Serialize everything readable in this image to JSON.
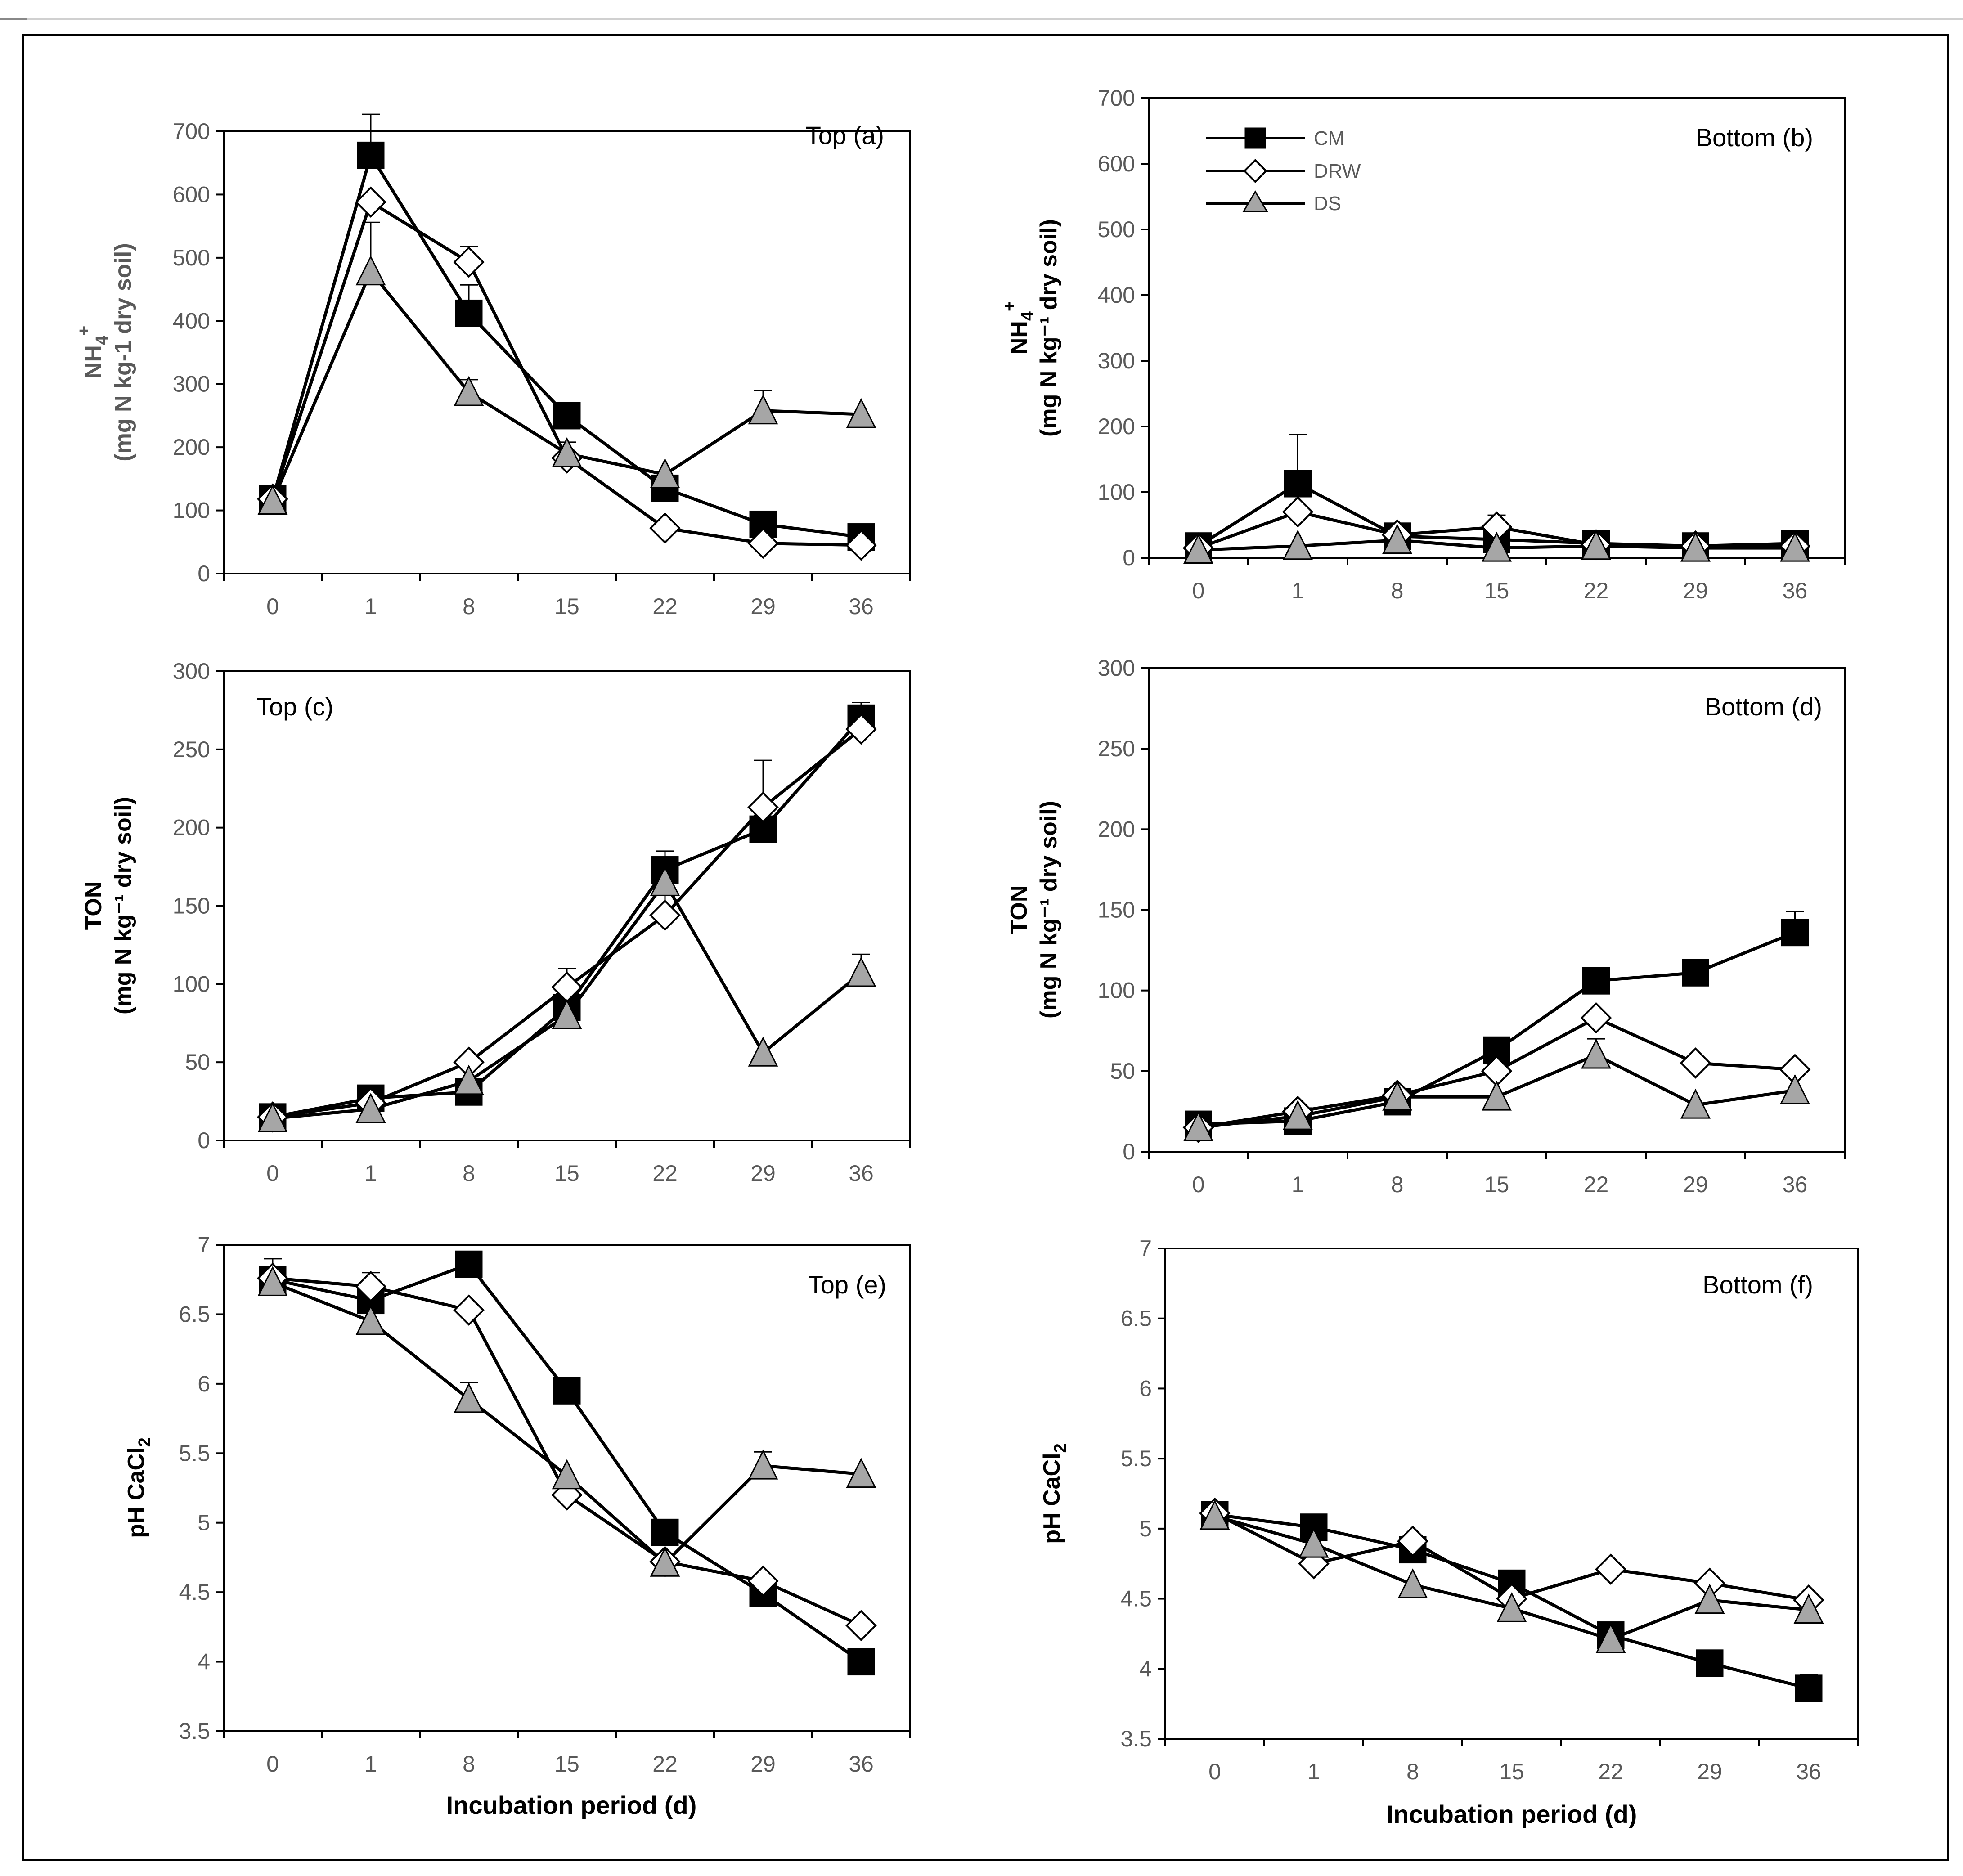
{
  "figure": {
    "xlabel": "Incubation period (d)",
    "colors": {
      "cm": "#000000",
      "drw": "#ffffff",
      "ds": "#a6a6a6",
      "line": "#000000",
      "axis": "#000000",
      "text_grey": "#595959"
    }
  },
  "legend": {
    "cm": "CM",
    "drw": "DRW",
    "ds": "DS"
  },
  "chart_data": [
    {
      "id": "a",
      "type": "line",
      "title": "Top (a)",
      "ylabel_main": "NH",
      "ylabel_sub": "4",
      "ylabel_sup": "+",
      "ylabel_line2": "(mg N kg-1 dry soil)",
      "ylim": [
        0,
        700
      ],
      "yticks": [
        0,
        100,
        200,
        300,
        400,
        500,
        600,
        700
      ],
      "categories": [
        "0",
        "1",
        "8",
        "15",
        "22",
        "29",
        "36"
      ],
      "series": [
        {
          "name": "CM",
          "values": [
            118,
            662,
            412,
            250,
            135,
            78,
            58
          ],
          "errors": [
            0,
            65,
            45,
            0,
            0,
            0,
            0
          ]
        },
        {
          "name": "DRW",
          "values": [
            118,
            588,
            493,
            183,
            72,
            48,
            45
          ],
          "errors": [
            0,
            0,
            25,
            0,
            0,
            0,
            0
          ]
        },
        {
          "name": "DS",
          "values": [
            115,
            478,
            287,
            190,
            157,
            258,
            252
          ],
          "errors": [
            0,
            78,
            20,
            18,
            0,
            32,
            0
          ]
        }
      ]
    },
    {
      "id": "b",
      "type": "line",
      "title": "Bottom (b)",
      "ylabel_main": "NH",
      "ylabel_sub": "4",
      "ylabel_sup": "+",
      "ylabel_line2": "(mg N kg⁻¹ dry soil)",
      "ylim": [
        0,
        700
      ],
      "yticks": [
        0,
        100,
        200,
        300,
        400,
        500,
        600,
        700
      ],
      "categories": [
        "0",
        "1",
        "8",
        "15",
        "22",
        "29",
        "36"
      ],
      "series": [
        {
          "name": "CM",
          "values": [
            18,
            113,
            33,
            28,
            22,
            18,
            22
          ],
          "errors": [
            0,
            75,
            0,
            0,
            0,
            0,
            0
          ]
        },
        {
          "name": "DRW",
          "values": [
            15,
            70,
            35,
            47,
            20,
            18,
            18
          ],
          "errors": [
            0,
            0,
            0,
            18,
            0,
            0,
            0
          ]
        },
        {
          "name": "DS",
          "values": [
            12,
            18,
            27,
            15,
            18,
            15,
            15
          ],
          "errors": [
            0,
            0,
            0,
            0,
            0,
            0,
            0
          ]
        }
      ]
    },
    {
      "id": "c",
      "type": "line",
      "title": "Top (c)",
      "ylabel_main": "TON",
      "ylabel_line2": "(mg N kg⁻¹ dry soil)",
      "ylim": [
        0,
        300
      ],
      "yticks": [
        0,
        50,
        100,
        150,
        200,
        250,
        300
      ],
      "categories": [
        "0",
        "1",
        "8",
        "15",
        "22",
        "29",
        "36"
      ],
      "series": [
        {
          "name": "CM",
          "values": [
            15,
            27,
            31,
            85,
            173,
            199,
            270
          ],
          "errors": [
            0,
            0,
            0,
            0,
            12,
            16,
            10
          ]
        },
        {
          "name": "DRW",
          "values": [
            15,
            24,
            50,
            98,
            144,
            213,
            263
          ],
          "errors": [
            0,
            0,
            0,
            12,
            35,
            30,
            12
          ]
        },
        {
          "name": "DS",
          "values": [
            14,
            20,
            38,
            80,
            165,
            56,
            107
          ],
          "errors": [
            0,
            0,
            0,
            0,
            0,
            0,
            12
          ]
        }
      ]
    },
    {
      "id": "d",
      "type": "line",
      "title": "Bottom (d)",
      "ylabel_main": "TON",
      "ylabel_line2": "(mg N kg⁻¹ dry soil)",
      "ylim": [
        0,
        300
      ],
      "yticks": [
        0,
        50,
        100,
        150,
        200,
        250,
        300
      ],
      "categories": [
        "0",
        "1",
        "8",
        "15",
        "22",
        "29",
        "36"
      ],
      "series": [
        {
          "name": "CM",
          "values": [
            17,
            19,
            31,
            63,
            106,
            111,
            136
          ],
          "errors": [
            0,
            0,
            0,
            0,
            0,
            0,
            13
          ]
        },
        {
          "name": "DRW",
          "values": [
            15,
            25,
            35,
            50,
            83,
            55,
            51
          ],
          "errors": [
            0,
            0,
            0,
            0,
            0,
            0,
            0
          ]
        },
        {
          "name": "DS",
          "values": [
            15,
            22,
            34,
            34,
            60,
            29,
            38
          ],
          "errors": [
            0,
            0,
            0,
            0,
            10,
            0,
            0
          ]
        }
      ]
    },
    {
      "id": "e",
      "type": "line",
      "title": "Top (e)",
      "ylabel_main": "pH CaCl",
      "ylabel_sub": "2",
      "ylim": [
        3.5,
        7
      ],
      "yticks": [
        3.5,
        4,
        4.5,
        5,
        5.5,
        6,
        6.5,
        7
      ],
      "categories": [
        "0",
        "1",
        "8",
        "15",
        "22",
        "29",
        "36"
      ],
      "series": [
        {
          "name": "CM",
          "values": [
            6.75,
            6.6,
            6.86,
            5.95,
            4.93,
            4.49,
            4.0
          ],
          "errors": [
            0.15,
            0,
            0,
            0,
            0,
            0,
            0
          ]
        },
        {
          "name": "DRW",
          "values": [
            6.76,
            6.7,
            6.53,
            5.2,
            4.72,
            4.58,
            4.26
          ],
          "errors": [
            0,
            0.1,
            0,
            0,
            0,
            0,
            0
          ]
        },
        {
          "name": "DS",
          "values": [
            6.73,
            6.45,
            5.89,
            5.34,
            4.71,
            5.41,
            5.35
          ],
          "errors": [
            0,
            0,
            0.12,
            0,
            0,
            0.1,
            0
          ]
        }
      ]
    },
    {
      "id": "f",
      "type": "line",
      "title": "Bottom (f)",
      "ylabel_main": "pH CaCl",
      "ylabel_sub": "2",
      "ylim": [
        3.5,
        7
      ],
      "yticks": [
        3.5,
        4,
        4.5,
        5,
        5.5,
        6,
        6.5,
        7
      ],
      "categories": [
        "0",
        "1",
        "8",
        "15",
        "22",
        "29",
        "36"
      ],
      "series": [
        {
          "name": "CM",
          "values": [
            5.1,
            5.01,
            4.85,
            4.61,
            4.24,
            4.04,
            3.86
          ],
          "errors": [
            0,
            0,
            0,
            0,
            0,
            0,
            0.1
          ]
        },
        {
          "name": "DRW",
          "values": [
            5.11,
            4.75,
            4.91,
            4.5,
            4.71,
            4.61,
            4.49
          ],
          "errors": [
            0,
            0,
            0,
            0,
            0,
            0,
            0
          ]
        },
        {
          "name": "DS",
          "values": [
            5.09,
            4.89,
            4.6,
            4.43,
            4.21,
            4.49,
            4.42
          ],
          "errors": [
            0,
            0,
            0,
            0,
            0,
            0,
            0
          ]
        }
      ]
    }
  ]
}
